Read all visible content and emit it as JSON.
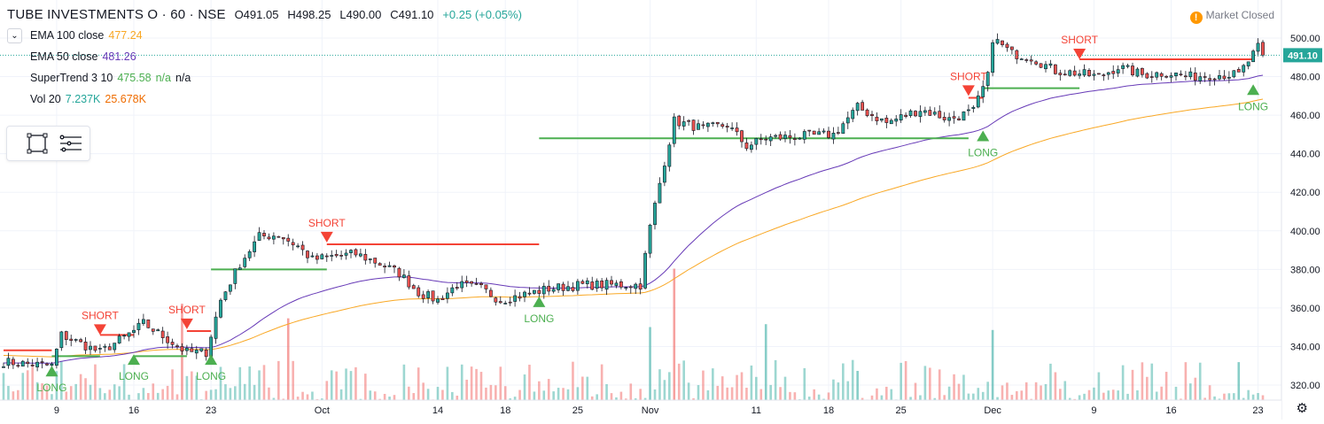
{
  "header": {
    "symbol": "TUBE INVESTMENTS O · 60 · NSE",
    "open": "O491.05",
    "high": "H498.25",
    "low": "L490.00",
    "close": "C491.10",
    "change": "+0.25 (+0.05%)"
  },
  "legend": {
    "toggle_icon": "chevron-down-icon",
    "ema100": {
      "label": "EMA 100 close",
      "value": "477.24",
      "color": "#f9a825"
    },
    "ema50": {
      "label": "EMA 50 close",
      "value": "481.26",
      "color": "#673ab7"
    },
    "supertrend": {
      "label": "SuperTrend 3 10",
      "value": "475.58",
      "extra1": "n/a",
      "extra2": "n/a",
      "color": "#4caf50"
    },
    "volume": {
      "label": "Vol 20",
      "value1": "7.237K",
      "value2": "25.678K",
      "color1": "#26a69a",
      "color2": "#ef6c00"
    }
  },
  "market_status": {
    "label": "Market Closed",
    "icon": "exclamation-icon"
  },
  "toolbar": {
    "icons": [
      "rectangle-select-icon",
      "lines-menu-icon"
    ]
  },
  "settings_icon": "gear-icon",
  "chart_data": {
    "type": "candlestick",
    "timeframe": "60",
    "ylim": [
      316,
      510
    ],
    "y_ticks": [
      320,
      340,
      360,
      380,
      400,
      420,
      440,
      460,
      480,
      500
    ],
    "last_price": "491.10",
    "colors": {
      "up": "#26a69a",
      "down": "#ef5350",
      "supertrend_up": "#4caf50",
      "supertrend_down": "#f44336",
      "ema50": "#673ab7",
      "ema100": "#f9a825"
    },
    "x_ticks": [
      {
        "label": "9",
        "i": 11
      },
      {
        "label": "16",
        "i": 27
      },
      {
        "label": "23",
        "i": 43
      },
      {
        "label": "Oct",
        "i": 66
      },
      {
        "label": "14",
        "i": 90
      },
      {
        "label": "18",
        "i": 104
      },
      {
        "label": "25",
        "i": 119
      },
      {
        "label": "Nov",
        "i": 134
      },
      {
        "label": "11",
        "i": 156
      },
      {
        "label": "18",
        "i": 171
      },
      {
        "label": "25",
        "i": 186
      },
      {
        "label": "Dec",
        "i": 205
      },
      {
        "label": "9",
        "i": 226
      },
      {
        "label": "16",
        "i": 242
      },
      {
        "label": "23",
        "i": 260
      }
    ],
    "key_points": [
      [
        0,
        332
      ],
      [
        10,
        330
      ],
      [
        12,
        346
      ],
      [
        20,
        337
      ],
      [
        27,
        348
      ],
      [
        29,
        352
      ],
      [
        38,
        337
      ],
      [
        42,
        337
      ],
      [
        45,
        364
      ],
      [
        49,
        383
      ],
      [
        53,
        397
      ],
      [
        57,
        398
      ],
      [
        61,
        392
      ],
      [
        64,
        385
      ],
      [
        69,
        387
      ],
      [
        73,
        388
      ],
      [
        78,
        383
      ],
      [
        82,
        378
      ],
      [
        86,
        368
      ],
      [
        90,
        364
      ],
      [
        94,
        372
      ],
      [
        99,
        370
      ],
      [
        103,
        364
      ],
      [
        108,
        367
      ],
      [
        113,
        370
      ],
      [
        120,
        372
      ],
      [
        128,
        372
      ],
      [
        132,
        372
      ],
      [
        134,
        402
      ],
      [
        137,
        436
      ],
      [
        139,
        457
      ],
      [
        145,
        453
      ],
      [
        150,
        455
      ],
      [
        154,
        444
      ],
      [
        158,
        448
      ],
      [
        165,
        449
      ],
      [
        172,
        450
      ],
      [
        177,
        464
      ],
      [
        183,
        456
      ],
      [
        190,
        463
      ],
      [
        196,
        458
      ],
      [
        201,
        462
      ],
      [
        204,
        480
      ],
      [
        205,
        500
      ],
      [
        209,
        492
      ],
      [
        213,
        490
      ],
      [
        218,
        483
      ],
      [
        222,
        482
      ],
      [
        227,
        480
      ],
      [
        231,
        485
      ],
      [
        236,
        481
      ],
      [
        241,
        482
      ],
      [
        246,
        480
      ],
      [
        251,
        481
      ],
      [
        256,
        481
      ],
      [
        260,
        495
      ],
      [
        261,
        491.1
      ]
    ],
    "supertrend": [
      {
        "from": 0,
        "to": 10,
        "trend": "down",
        "level": 338
      },
      {
        "from": 10,
        "to": 20,
        "trend": "up",
        "level": 335
      },
      {
        "from": 20,
        "to": 27,
        "trend": "down",
        "level": 346
      },
      {
        "from": 27,
        "to": 38,
        "trend": "up",
        "level": 335
      },
      {
        "from": 38,
        "to": 43,
        "trend": "down",
        "level": 348
      },
      {
        "from": 43,
        "to": 67,
        "trend": "up",
        "level": 380
      },
      {
        "from": 67,
        "to": 111,
        "trend": "down",
        "level": 393
      },
      {
        "from": 111,
        "to": 200,
        "trend": "up",
        "level": 448
      },
      {
        "from": 200,
        "to": 203,
        "trend": "down",
        "level": 469
      },
      {
        "from": 203,
        "to": 223,
        "trend": "up",
        "level": 474
      },
      {
        "from": 223,
        "to": 259,
        "trend": "down",
        "level": 489
      }
    ],
    "signals": [
      {
        "type": "LONG",
        "i": 10,
        "price": 330
      },
      {
        "type": "SHORT",
        "i": 20,
        "price": 346
      },
      {
        "type": "LONG",
        "i": 27,
        "price": 336
      },
      {
        "type": "SHORT",
        "i": 38,
        "price": 349
      },
      {
        "type": "LONG",
        "i": 43,
        "price": 336
      },
      {
        "type": "SHORT",
        "i": 67,
        "price": 394
      },
      {
        "type": "LONG",
        "i": 111,
        "price": 366
      },
      {
        "type": "SHORT",
        "i": 200,
        "price": 470
      },
      {
        "type": "LONG",
        "i": 203,
        "price": 452
      },
      {
        "type": "SHORT",
        "i": 223,
        "price": 489
      },
      {
        "type": "LONG",
        "i": 259,
        "price": 476
      }
    ],
    "volume_spikes": [
      {
        "i": 37,
        "v": 33,
        "dir": "down"
      },
      {
        "i": 59,
        "v": 28,
        "dir": "down"
      },
      {
        "i": 134,
        "v": 25,
        "dir": "up"
      },
      {
        "i": 139,
        "v": 45,
        "dir": "down"
      },
      {
        "i": 158,
        "v": 26,
        "dir": "up"
      },
      {
        "i": 205,
        "v": 24,
        "dir": "up"
      },
      {
        "i": 177,
        "v": 10,
        "dir": "up"
      },
      {
        "i": 256,
        "v": 13,
        "dir": "up"
      }
    ]
  }
}
